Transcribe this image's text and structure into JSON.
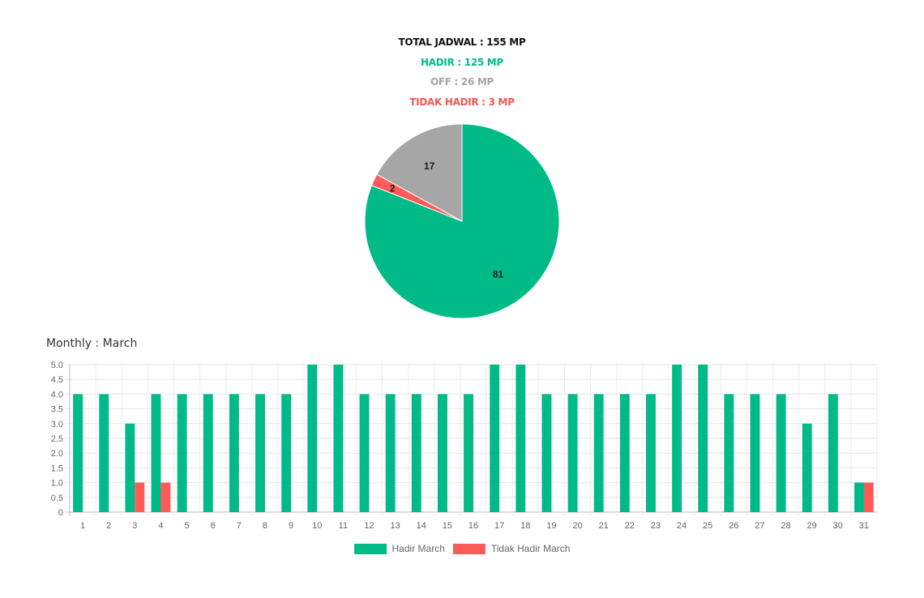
{
  "summary": {
    "total": "TOTAL JADWAL : 155 MP",
    "hadir": "HADIR : 125 MP",
    "off": "OFF : 26 MP",
    "tidak_hadir": "TIDAK HADIR : 3 MP"
  },
  "monthly_title": "Monthly : March",
  "colors": {
    "hadir": "#00ba88",
    "tidak_hadir": "#ff5a5a",
    "off": "#a6a6a6"
  },
  "chart_data": [
    {
      "type": "pie",
      "values": [
        81,
        2,
        17
      ],
      "labels": [
        "81",
        "2",
        "17"
      ],
      "colors": [
        "#00ba88",
        "#ff5a5a",
        "#a6a6a6"
      ]
    },
    {
      "type": "bar",
      "categories": [
        "1",
        "2",
        "3",
        "4",
        "5",
        "6",
        "7",
        "8",
        "9",
        "10",
        "11",
        "12",
        "13",
        "14",
        "15",
        "16",
        "17",
        "18",
        "19",
        "20",
        "21",
        "22",
        "23",
        "24",
        "25",
        "26",
        "27",
        "28",
        "29",
        "30",
        "31"
      ],
      "series": [
        {
          "name": "Hadir March",
          "color": "#00ba88",
          "values": [
            4,
            4,
            3,
            4,
            4,
            4,
            4,
            4,
            4,
            5,
            5,
            4,
            4,
            4,
            4,
            4,
            5,
            5,
            4,
            4,
            4,
            4,
            4,
            5,
            5,
            4,
            4,
            4,
            3,
            4,
            1
          ]
        },
        {
          "name": "Tidak Hadir March",
          "color": "#ff5a5a",
          "values": [
            0,
            0,
            1,
            1,
            0,
            0,
            0,
            0,
            0,
            0,
            0,
            0,
            0,
            0,
            0,
            0,
            0,
            0,
            0,
            0,
            0,
            0,
            0,
            0,
            0,
            0,
            0,
            0,
            0,
            0,
            1
          ]
        }
      ],
      "ylim": [
        0,
        5
      ],
      "yticks": [
        "0",
        "0.5",
        "1.0",
        "1.5",
        "2.0",
        "2.5",
        "3.0",
        "3.5",
        "4.0",
        "4.5",
        "5.0"
      ],
      "grid": true,
      "legend": "bottom"
    }
  ]
}
